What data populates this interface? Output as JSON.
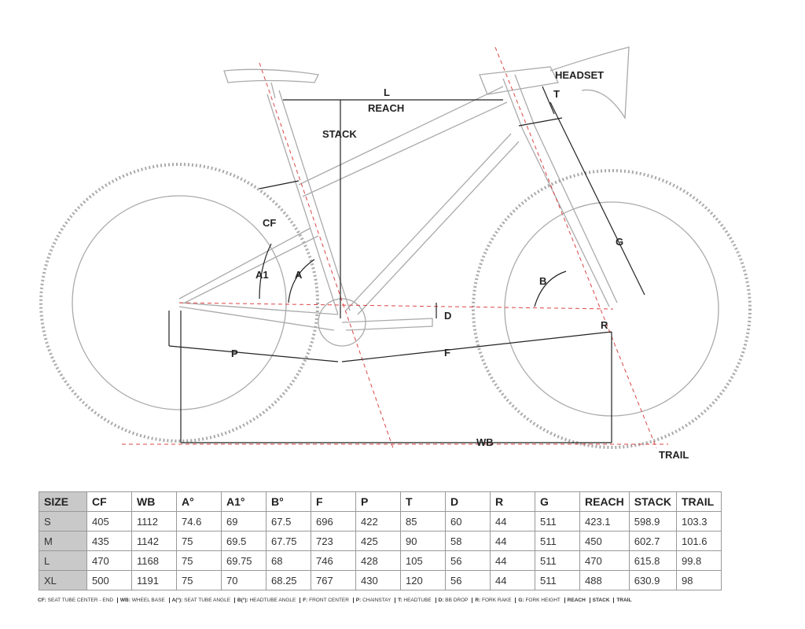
{
  "diagram": {
    "labels": {
      "headset": "HEADSET",
      "l": "L",
      "reach": "REACH",
      "t": "T",
      "stack": "STACK",
      "cf": "CF",
      "a1": "A1",
      "a": "A",
      "b": "B",
      "g": "G",
      "d": "D",
      "r": "R",
      "p": "P",
      "f": "F",
      "wb": "WB",
      "trail": "TRAIL"
    }
  },
  "table": {
    "header": [
      "SIZE",
      "CF",
      "WB",
      "A°",
      "A1°",
      "B°",
      "F",
      "P",
      "T",
      "D",
      "R",
      "G",
      "REACH",
      "STACK",
      "TRAIL"
    ],
    "rows": [
      [
        "S",
        "405",
        "1112",
        "74.6",
        "69",
        "67.5",
        "696",
        "422",
        "85",
        "60",
        "44",
        "511",
        "423.1",
        "598.9",
        "103.3"
      ],
      [
        "M",
        "435",
        "1142",
        "75",
        "69.5",
        "67.75",
        "723",
        "425",
        "90",
        "58",
        "44",
        "511",
        "450",
        "602.7",
        "101.6"
      ],
      [
        "L",
        "470",
        "1168",
        "75",
        "69.75",
        "68",
        "746",
        "428",
        "105",
        "56",
        "44",
        "511",
        "470",
        "615.8",
        "99.8"
      ],
      [
        "XL",
        "500",
        "1191",
        "75",
        "70",
        "68.25",
        "767",
        "430",
        "120",
        "56",
        "44",
        "511",
        "488",
        "630.9",
        "98"
      ]
    ]
  },
  "footnote": [
    {
      "key": "CF:",
      "desc": "SEAT TUBE CENTER - END"
    },
    {
      "key": "WB:",
      "desc": "WHEEL BASE"
    },
    {
      "key": "A(°):",
      "desc": "SEAT TUBE ANGLE"
    },
    {
      "key": "B(°):",
      "desc": "HEADTUBE ANGLE"
    },
    {
      "key": "F:",
      "desc": "FRONT CENTER"
    },
    {
      "key": "P:",
      "desc": "CHAINSTAY"
    },
    {
      "key": "T:",
      "desc": "HEADTUBE"
    },
    {
      "key": "D:",
      "desc": "BB DROP"
    },
    {
      "key": "R:",
      "desc": "FORK RAKE"
    },
    {
      "key": "G:",
      "desc": "FORK HEIGHT"
    },
    {
      "key": "REACH"
    },
    {
      "key": "STACK"
    },
    {
      "key": "TRAIL"
    }
  ]
}
